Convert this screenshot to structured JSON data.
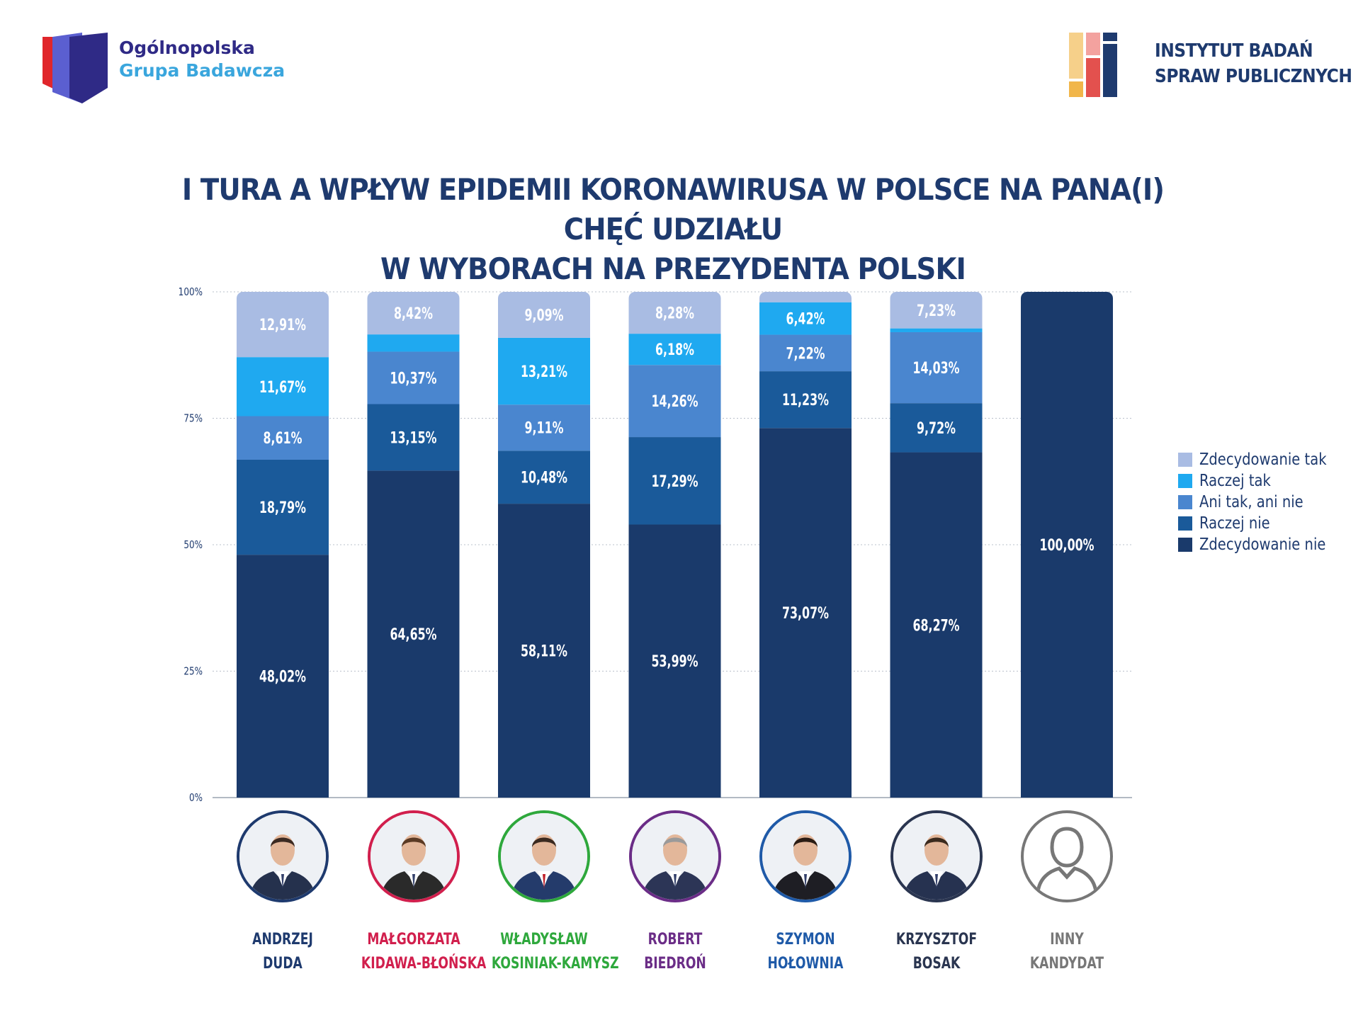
{
  "logos": {
    "left": {
      "line1": "Ogólnopolska",
      "line2": "Grupa Badawcza"
    },
    "right": {
      "line1": "INSTYTUT BADAŃ",
      "line2": "SPRAW PUBLICZNYCH"
    }
  },
  "title": {
    "line1": "I TURA A WPŁYW EPIDEMII KORONAWIRUSA W POLSCE NA PANA(I) CHĘĆ UDZIAŁU",
    "line2": "W WYBORACH NA PREZYDENTA POLSKI"
  },
  "colors": {
    "zdecydowanie_tak": "#a9bce3",
    "raczej_tak": "#1fa9f0",
    "ani_tak_ani_nie": "#4a86cf",
    "raczej_nie": "#1a5a9a",
    "zdecydowanie_nie": "#1a3a6b",
    "title": "#1e3a6e",
    "duda": "#1e3a6e",
    "kidawa": "#d11f4d",
    "kosiniak": "#2ea83c",
    "biedron": "#6b2d87",
    "holownia": "#1f5aa8",
    "bosak": "#2a3550",
    "inny": "#777777"
  },
  "chart_data": {
    "type": "bar",
    "stacked": true,
    "categories": [
      "ANDRZEJ DUDA",
      "MAŁGORZATA KIDAWA-BŁOŃSKA",
      "WŁADYSŁAW KOSINIAK-KAMYSZ",
      "ROBERT BIEDROŃ",
      "SZYMON HOŁOWNIA",
      "KRZYSZTOF BOSAK",
      "INNY KANDYDAT"
    ],
    "series": [
      {
        "name": "Zdecydowanie nie",
        "color": "#1a3a6b",
        "values": [
          48.02,
          64.65,
          58.11,
          53.99,
          73.07,
          68.27,
          100.0
        ],
        "labels": [
          "48,02%",
          "64,65%",
          "58,11%",
          "53,99%",
          "73,07%",
          "68,27%",
          "100,00%"
        ]
      },
      {
        "name": "Raczej nie",
        "color": "#1a5a9a",
        "values": [
          18.79,
          13.15,
          10.48,
          17.29,
          11.23,
          9.72,
          0
        ],
        "labels": [
          "18,79%",
          "13,15%",
          "10,48%",
          "17,29%",
          "11,23%",
          "9,72%",
          ""
        ]
      },
      {
        "name": "Ani tak, ani nie",
        "color": "#4a86cf",
        "values": [
          8.61,
          10.37,
          9.11,
          14.26,
          7.22,
          14.03,
          0
        ],
        "labels": [
          "8,61%",
          "10,37%",
          "9,11%",
          "14,26%",
          "7,22%",
          "14,03%",
          ""
        ]
      },
      {
        "name": "Raczej tak",
        "color": "#1fa9f0",
        "values": [
          11.67,
          3.41,
          13.21,
          6.18,
          6.42,
          0.75,
          0
        ],
        "labels": [
          "11,67%",
          "",
          "13,21%",
          "6,18%",
          "6,42%",
          "",
          ""
        ]
      },
      {
        "name": "Zdecydowanie tak",
        "color": "#a9bce3",
        "values": [
          12.91,
          8.42,
          9.09,
          8.28,
          2.06,
          7.23,
          0
        ],
        "labels": [
          "12,91%",
          "8,42%",
          "9,09%",
          "8,28%",
          "",
          "7,23%",
          ""
        ]
      }
    ],
    "yticks": [
      "0%",
      "25%",
      "50%",
      "75%",
      "100%"
    ],
    "ylim": [
      0,
      100
    ],
    "grid": true,
    "legend": [
      "Zdecydowanie tak",
      "Raczej tak",
      "Ani tak, ani nie",
      "Raczej nie",
      "Zdecydowanie nie"
    ],
    "legend_position": "right"
  },
  "candidates": [
    {
      "line1": "ANDRZEJ",
      "line2": "DUDA",
      "color": "#1e3a6e"
    },
    {
      "line1": "MAŁGORZATA",
      "line2": "KIDAWA-BŁOŃSKA",
      "color": "#d11f4d"
    },
    {
      "line1": "WŁADYSŁAW",
      "line2": "KOSINIAK-KAMYSZ",
      "color": "#2ea83c"
    },
    {
      "line1": "ROBERT",
      "line2": "BIEDROŃ",
      "color": "#6b2d87"
    },
    {
      "line1": "SZYMON",
      "line2": "HOŁOWNIA",
      "color": "#1f5aa8"
    },
    {
      "line1": "KRZYSZTOF",
      "line2": "BOSAK",
      "color": "#2a3550"
    },
    {
      "line1": "INNY",
      "line2": "KANDYDAT",
      "color": "#777777"
    }
  ]
}
